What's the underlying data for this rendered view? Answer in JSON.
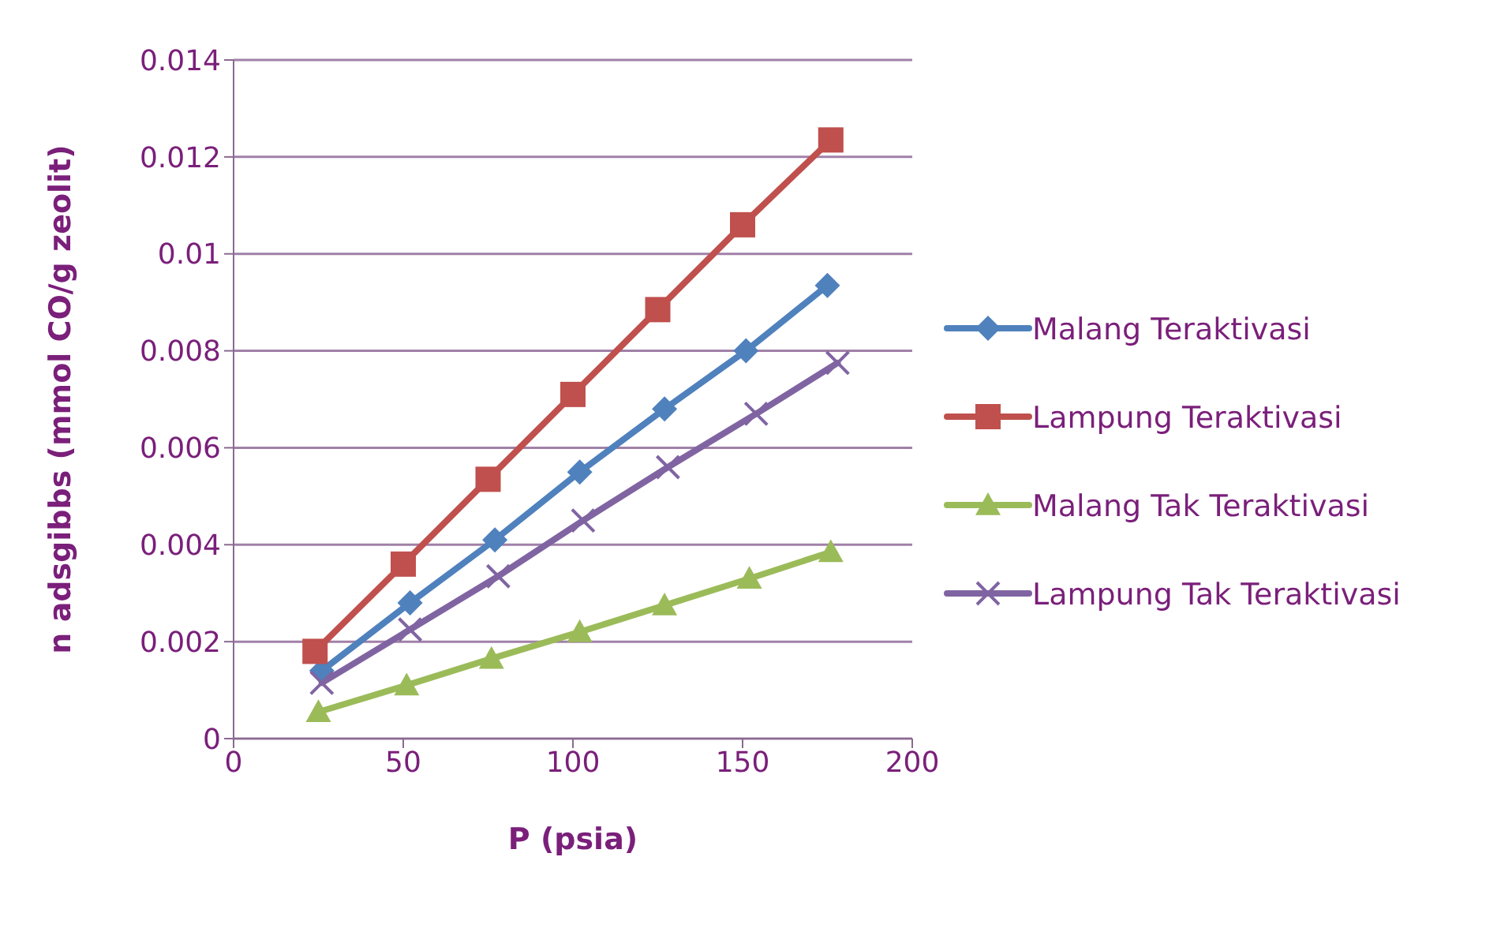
{
  "chart_data": {
    "type": "line",
    "xlabel": "P (psia)",
    "ylabel": "n adsgibbs (mmol CO/g zeolit)",
    "xlim": [
      0,
      200
    ],
    "xticks": [
      0,
      50,
      100,
      150,
      200
    ],
    "ylim": [
      0,
      0.014
    ],
    "yticks": [
      {
        "value": 0,
        "label": "0"
      },
      0.002,
      0.004,
      0.006,
      0.008,
      {
        "value": 0.01,
        "label": "0.01"
      },
      0.012,
      0.014
    ],
    "grid": "y",
    "legend": "right",
    "series": [
      {
        "name": "Malang Teraktivasi",
        "color": "#4f81bd",
        "marker": "diamond",
        "x": [
          26,
          52,
          77,
          102,
          127,
          151,
          175
        ],
        "values": [
          0.0014,
          0.0028,
          0.0041,
          0.0055,
          0.0068,
          0.008,
          0.00935
        ]
      },
      {
        "name": "Lampung Teraktivasi",
        "color": "#c0504d",
        "marker": "square",
        "x": [
          24,
          50,
          75,
          100,
          125,
          150,
          176
        ],
        "values": [
          0.0018,
          0.0036,
          0.00535,
          0.0071,
          0.00885,
          0.0106,
          0.01235
        ]
      },
      {
        "name": "Malang Tak Teraktivasi",
        "color": "#9bbb59",
        "marker": "triangle",
        "x": [
          25,
          51,
          76,
          102,
          127,
          152,
          176
        ],
        "values": [
          0.00055,
          0.0011,
          0.00165,
          0.0022,
          0.00275,
          0.0033,
          0.00385
        ]
      },
      {
        "name": "Lampung Tak Teraktivasi",
        "color": "#8064a2",
        "marker": "cross",
        "x": [
          26,
          52,
          78,
          103,
          128,
          154,
          178
        ],
        "values": [
          0.00115,
          0.00225,
          0.00335,
          0.0045,
          0.0056,
          0.0067,
          0.00775
        ]
      }
    ]
  }
}
